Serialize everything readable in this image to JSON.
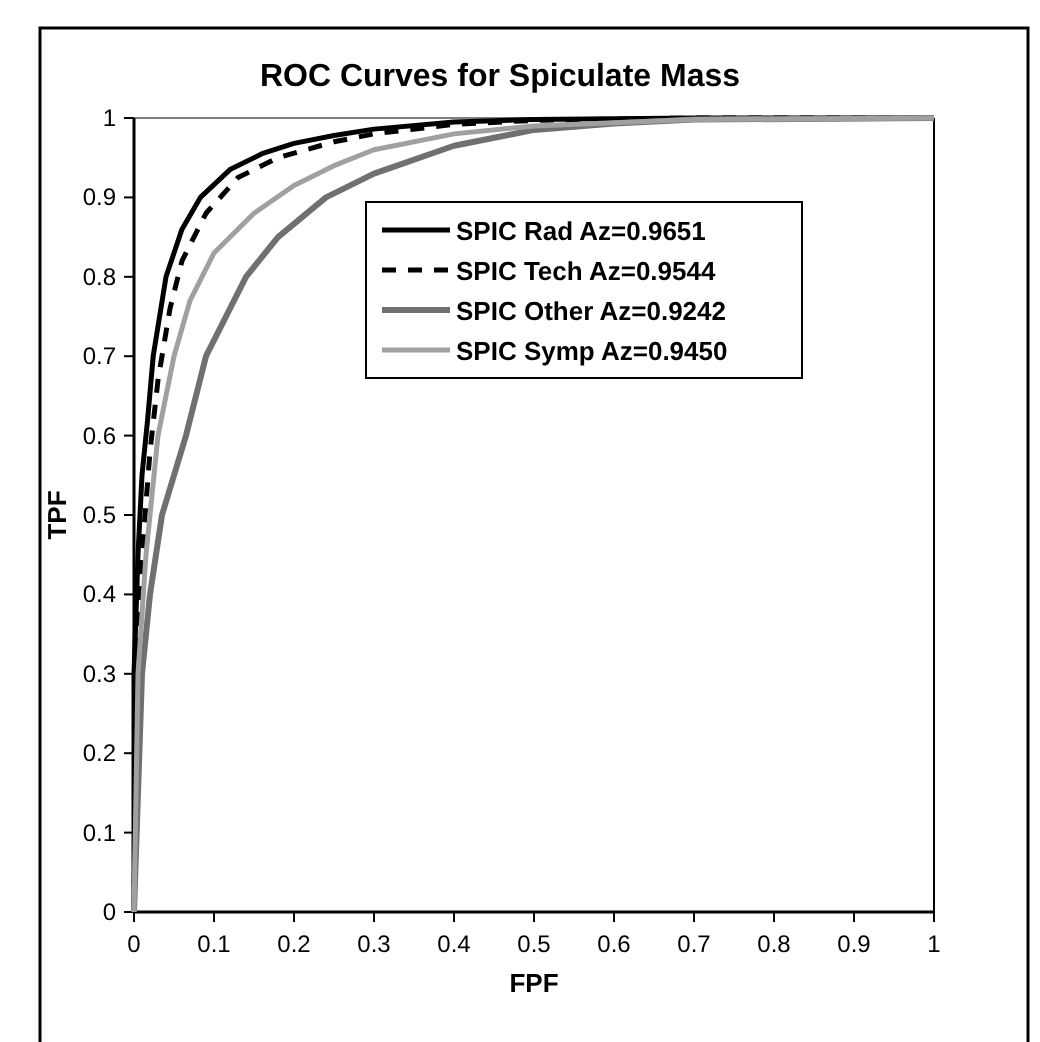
{
  "chart_data": {
    "type": "line",
    "title": "ROC Curves for Spiculate Mass",
    "xlabel": "FPF",
    "ylabel": "TPF",
    "xlim": [
      0,
      1
    ],
    "ylim": [
      0,
      1
    ],
    "xticks": [
      0,
      0.1,
      0.2,
      0.3,
      0.4,
      0.5,
      0.6,
      0.7,
      0.8,
      0.9,
      1
    ],
    "yticks": [
      0,
      0.1,
      0.2,
      0.3,
      0.4,
      0.5,
      0.6,
      0.7,
      0.8,
      0.9,
      1
    ],
    "grid": false,
    "legend": "top right",
    "marker": "none",
    "series": [
      {
        "name": "SPIC Rad Az=0.9651",
        "color": "#000000",
        "line_style": "solid",
        "x": [
          0,
          0,
          0.005,
          0.01,
          0.017,
          0.024,
          0.04,
          0.06,
          0.083,
          0.12,
          0.16,
          0.2,
          0.25,
          0.3,
          0.4,
          0.5,
          0.7,
          1
        ],
        "values": [
          0,
          0.3,
          0.45,
          0.55,
          0.62,
          0.7,
          0.8,
          0.86,
          0.9,
          0.935,
          0.955,
          0.968,
          0.978,
          0.986,
          0.995,
          0.998,
          1,
          1
        ]
      },
      {
        "name": "SPIC Tech Az=0.9544",
        "color": "#000000",
        "line_style": "dashed",
        "x": [
          0,
          0.003,
          0.01,
          0.02,
          0.03,
          0.045,
          0.06,
          0.09,
          0.13,
          0.18,
          0.25,
          0.3,
          0.4,
          0.5,
          0.7,
          1
        ],
        "values": [
          0,
          0.3,
          0.45,
          0.58,
          0.67,
          0.76,
          0.82,
          0.88,
          0.925,
          0.95,
          0.97,
          0.98,
          0.992,
          0.997,
          1,
          1
        ]
      },
      {
        "name": "SPIC Other Az=0.9242",
        "color": "#707070",
        "line_style": "solid",
        "x": [
          0,
          0.01,
          0.02,
          0.035,
          0.065,
          0.09,
          0.14,
          0.18,
          0.24,
          0.3,
          0.4,
          0.5,
          0.6,
          0.7,
          1
        ],
        "values": [
          0,
          0.3,
          0.4,
          0.5,
          0.6,
          0.7,
          0.8,
          0.85,
          0.9,
          0.93,
          0.965,
          0.985,
          0.993,
          0.998,
          1
        ]
      },
      {
        "name": "SPIC Symp Az=0.9450",
        "color": "#a0a0a0",
        "line_style": "solid",
        "x": [
          0,
          0.005,
          0.015,
          0.03,
          0.05,
          0.07,
          0.1,
          0.15,
          0.2,
          0.25,
          0.3,
          0.4,
          0.5,
          0.7,
          1
        ],
        "values": [
          0,
          0.3,
          0.45,
          0.6,
          0.7,
          0.77,
          0.83,
          0.88,
          0.915,
          0.94,
          0.96,
          0.98,
          0.99,
          0.998,
          1
        ]
      }
    ]
  }
}
